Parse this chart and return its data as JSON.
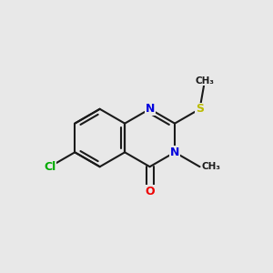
{
  "background_color": "#e8e8e8",
  "bond_color": "#1a1a1a",
  "bond_width": 1.5,
  "atom_colors": {
    "N": "#0000dd",
    "O": "#ee0000",
    "S": "#bbbb00",
    "Cl": "#00aa00",
    "C": "#1a1a1a"
  },
  "font_size_atom": 9,
  "font_size_methyl": 7.5,
  "ox": 0.38,
  "oy": 0.5,
  "bl": 0.105
}
